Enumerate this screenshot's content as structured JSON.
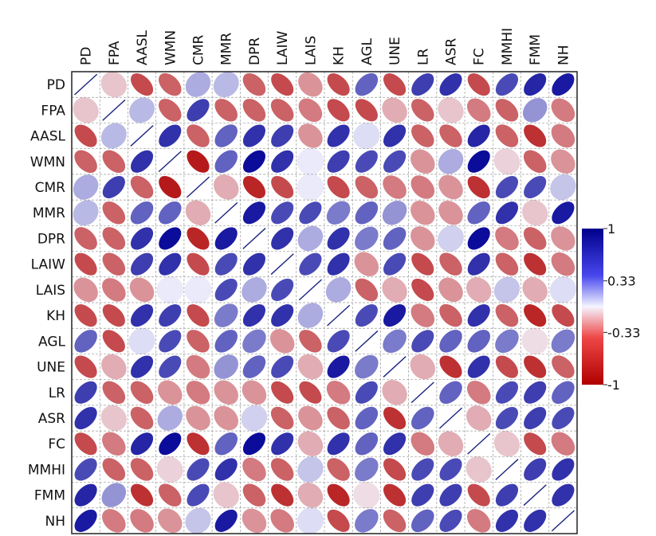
{
  "chart_data": {
    "type": "heatmap",
    "style": "correlation-ellipse",
    "variables": [
      "PD",
      "FPA",
      "AASL",
      "WMN",
      "CMR",
      "MMR",
      "DPR",
      "LAIW",
      "LAIS",
      "KH",
      "AGL",
      "UNE",
      "LR",
      "ASR",
      "FC",
      "MMHI",
      "FMM",
      "NH"
    ],
    "matrix": [
      [
        1.0,
        -0.2,
        -0.7,
        -0.6,
        0.3,
        0.25,
        -0.6,
        -0.7,
        -0.4,
        -0.7,
        0.6,
        -0.7,
        0.75,
        0.8,
        -0.7,
        0.7,
        0.85,
        0.9
      ],
      [
        -0.2,
        1.0,
        0.25,
        -0.6,
        0.75,
        -0.6,
        -0.6,
        -0.6,
        -0.5,
        -0.7,
        -0.7,
        -0.3,
        -0.6,
        -0.2,
        -0.5,
        -0.6,
        0.4,
        -0.5
      ],
      [
        -0.7,
        0.25,
        1.0,
        0.8,
        -0.6,
        0.6,
        0.8,
        0.75,
        -0.4,
        0.8,
        0.1,
        0.8,
        -0.6,
        -0.6,
        0.85,
        -0.6,
        -0.8,
        -0.5
      ],
      [
        -0.6,
        -0.6,
        0.8,
        1.0,
        -0.9,
        0.6,
        0.95,
        0.8,
        0.05,
        0.75,
        0.7,
        0.7,
        -0.4,
        0.3,
        0.95,
        -0.15,
        -0.6,
        -0.4
      ],
      [
        0.3,
        0.75,
        -0.6,
        -0.9,
        1.0,
        -0.3,
        -0.85,
        -0.7,
        0.05,
        -0.7,
        -0.6,
        -0.5,
        -0.5,
        -0.4,
        -0.8,
        0.7,
        0.7,
        0.2
      ],
      [
        0.25,
        -0.6,
        0.6,
        0.6,
        -0.3,
        1.0,
        0.9,
        0.7,
        0.7,
        0.5,
        0.6,
        0.4,
        -0.4,
        -0.4,
        0.6,
        0.8,
        -0.2,
        0.9
      ],
      [
        -0.6,
        -0.6,
        0.8,
        0.95,
        -0.85,
        0.9,
        1.0,
        0.8,
        0.3,
        0.8,
        0.5,
        0.6,
        -0.4,
        0.15,
        0.95,
        -0.5,
        -0.6,
        -0.4
      ],
      [
        -0.7,
        -0.6,
        0.75,
        0.8,
        -0.7,
        0.7,
        0.8,
        1.0,
        0.7,
        0.8,
        -0.4,
        0.7,
        -0.7,
        -0.6,
        0.8,
        -0.6,
        -0.8,
        -0.5
      ],
      [
        -0.4,
        -0.5,
        -0.4,
        0.05,
        0.05,
        0.7,
        0.3,
        0.7,
        1.0,
        0.3,
        -0.6,
        -0.3,
        -0.7,
        -0.4,
        -0.3,
        0.2,
        -0.3,
        0.1
      ],
      [
        -0.7,
        -0.7,
        0.8,
        0.75,
        -0.7,
        0.5,
        0.8,
        0.8,
        0.3,
        1.0,
        0.7,
        0.9,
        -0.5,
        -0.6,
        0.8,
        -0.6,
        -0.85,
        -0.7
      ],
      [
        0.6,
        -0.7,
        0.1,
        0.7,
        -0.6,
        0.6,
        0.5,
        -0.4,
        -0.6,
        0.7,
        1.0,
        0.5,
        0.7,
        0.6,
        0.6,
        0.5,
        -0.1,
        0.5
      ],
      [
        -0.7,
        -0.3,
        0.8,
        0.7,
        -0.5,
        0.4,
        0.6,
        0.7,
        -0.3,
        0.9,
        0.5,
        1.0,
        -0.3,
        -0.8,
        0.8,
        -0.7,
        -0.8,
        -0.6
      ],
      [
        0.75,
        -0.6,
        -0.6,
        -0.4,
        -0.5,
        -0.4,
        -0.4,
        -0.7,
        -0.7,
        -0.5,
        0.7,
        -0.3,
        1.0,
        0.6,
        -0.5,
        0.7,
        0.75,
        0.6
      ],
      [
        0.8,
        -0.2,
        -0.6,
        0.3,
        -0.4,
        -0.4,
        0.15,
        -0.6,
        -0.4,
        -0.6,
        0.6,
        -0.8,
        0.6,
        1.0,
        -0.3,
        0.7,
        0.75,
        0.7
      ],
      [
        -0.7,
        -0.5,
        0.85,
        0.95,
        -0.8,
        0.6,
        0.95,
        0.8,
        -0.3,
        0.8,
        0.6,
        0.8,
        -0.5,
        -0.3,
        1.0,
        -0.2,
        -0.7,
        -0.5
      ],
      [
        0.7,
        -0.6,
        -0.6,
        -0.15,
        0.7,
        0.8,
        -0.5,
        -0.6,
        0.2,
        -0.6,
        0.5,
        -0.7,
        0.7,
        0.7,
        -0.2,
        1.0,
        0.75,
        0.8
      ],
      [
        0.85,
        0.4,
        -0.8,
        -0.6,
        0.7,
        -0.2,
        -0.6,
        -0.8,
        -0.3,
        -0.85,
        -0.1,
        -0.8,
        0.75,
        0.75,
        -0.7,
        0.75,
        1.0,
        0.8
      ],
      [
        0.9,
        -0.5,
        -0.5,
        -0.4,
        0.2,
        0.9,
        -0.4,
        -0.5,
        0.1,
        -0.7,
        0.5,
        -0.6,
        0.6,
        0.7,
        -0.5,
        0.8,
        0.8,
        1.0
      ]
    ],
    "colorbar": {
      "ticks": [
        1,
        0.33,
        -0.33,
        -1
      ],
      "tick_labels": [
        "1",
        "0.33",
        "-0.33",
        "-1"
      ],
      "range": [
        -1,
        1
      ],
      "colors": {
        "negative": "#b00000",
        "neutral": "#f8f8ff",
        "positive": "#00008b"
      }
    },
    "grid": true,
    "legend_position": "right"
  }
}
